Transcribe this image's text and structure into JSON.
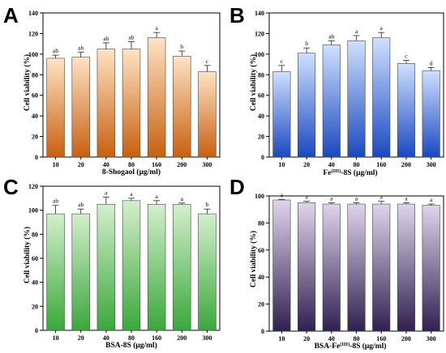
{
  "chart_data": [
    {
      "type": "bar",
      "panel_label": "A",
      "categories": [
        "10",
        "20",
        "40",
        "80",
        "160",
        "200",
        "300"
      ],
      "values": [
        96,
        97,
        105,
        105,
        116,
        98,
        83
      ],
      "errors": [
        3,
        5,
        6,
        7,
        5,
        5,
        6
      ],
      "significance": [
        "ab",
        "ab",
        "ab",
        "ab",
        "a",
        "b",
        "c"
      ],
      "xlabel": "8-Shogaol (μg/ml)",
      "ylabel": "Cell viability (%)",
      "ylim": [
        0,
        140
      ],
      "yticks": [
        "0",
        "20",
        "40",
        "60",
        "80",
        "100",
        "120",
        "140"
      ],
      "bar_color_top": "#ffe3c4",
      "bar_color_bottom": "#c86010"
    },
    {
      "type": "bar",
      "panel_label": "B",
      "categories": [
        "10",
        "20",
        "40",
        "80",
        "160",
        "200",
        "300"
      ],
      "values": [
        83,
        101,
        109,
        113,
        116,
        91,
        84
      ],
      "errors": [
        6,
        5,
        4,
        5,
        5,
        3,
        3
      ],
      "significance": [
        "c",
        "b",
        "ab",
        "a",
        "a",
        "c",
        "d"
      ],
      "xlabel_prefix": "Fe",
      "xlabel_superscript": "(III)",
      "xlabel_suffix": "-8S (μg/ml)",
      "ylabel": "Cell viability (%)",
      "ylim": [
        0,
        140
      ],
      "yticks": [
        "0",
        "20",
        "40",
        "60",
        "80",
        "100",
        "120",
        "140"
      ],
      "bar_color_top": "#cfe0ff",
      "bar_color_bottom": "#1a48c0"
    },
    {
      "type": "bar",
      "panel_label": "C",
      "categories": [
        "10",
        "20",
        "40",
        "80",
        "160",
        "200",
        "300"
      ],
      "values": [
        97,
        97,
        105,
        108,
        105,
        105,
        97
      ],
      "errors": [
        7,
        4,
        6,
        2,
        3,
        1,
        4
      ],
      "significance": [
        "ab",
        "ab",
        "a",
        "a",
        "a",
        "a",
        "b"
      ],
      "xlabel": "BSA-8S (μg/ml)",
      "ylabel": "Cell viability (%)",
      "ylim": [
        0,
        120
      ],
      "yticks": [
        "0",
        "20",
        "40",
        "60",
        "80",
        "100",
        "120"
      ],
      "bar_color_top": "#d3efcc",
      "bar_color_bottom": "#3aa83a"
    },
    {
      "type": "bar",
      "panel_label": "D",
      "categories": [
        "10",
        "20",
        "40",
        "80",
        "160",
        "200",
        "300"
      ],
      "values": [
        97,
        95,
        94,
        94,
        94,
        94,
        93
      ],
      "errors": [
        0.5,
        1,
        1,
        1,
        2,
        1,
        1
      ],
      "significance": [
        "a",
        "a",
        "a",
        "a",
        "a",
        "a",
        "a"
      ],
      "xlabel_prefix": "BSA-Fe",
      "xlabel_superscript": "(III)",
      "xlabel_suffix": "-8S (μg/ml)",
      "ylabel": "Cell viability (%)",
      "ylim": [
        0,
        100
      ],
      "yticks": [
        "0",
        "20",
        "40",
        "60",
        "80",
        "100"
      ],
      "bar_color_top": "#e0d4ec",
      "bar_color_bottom": "#2f2050"
    }
  ]
}
